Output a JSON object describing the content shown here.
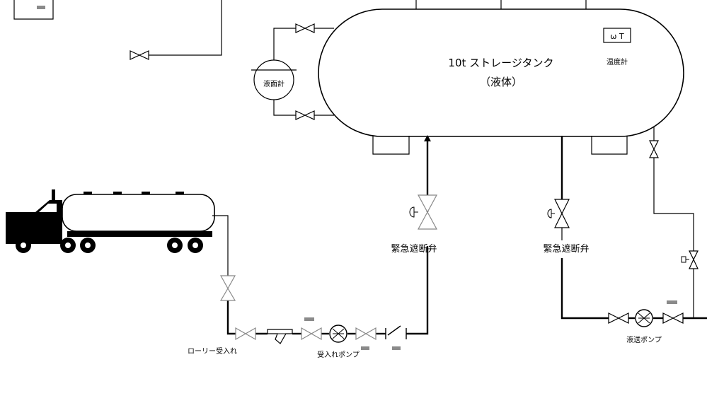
{
  "tank": {
    "title": "10t ストレージタンク",
    "subtitle": "（液体）"
  },
  "instruments": {
    "level_gauge": "液面計",
    "thermometer": "温度計",
    "thermometer_symbol": "ѡ  T"
  },
  "valves": {
    "emergency_left": "緊急遮断弁",
    "emergency_right": "緊急遮断弁"
  },
  "pumps": {
    "receiving": "受入れポンプ",
    "transfer": "液送ポンプ"
  },
  "labels": {
    "lorry_receiving": "ローリー受入れ"
  }
}
